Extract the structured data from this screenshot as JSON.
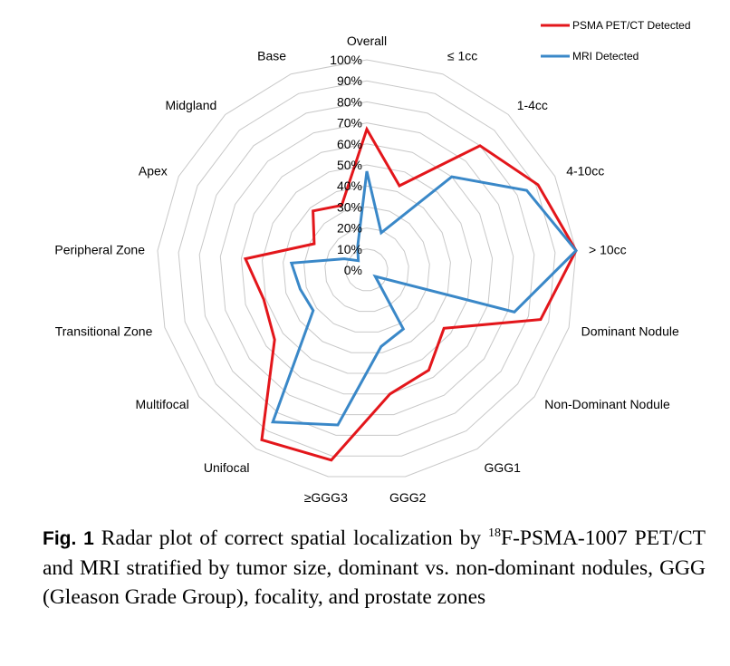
{
  "chart_data": {
    "type": "radar",
    "categories": [
      "Overall",
      "≤ 1cc",
      "1-4cc",
      "4-10cc",
      "> 10cc",
      "Dominant Nodule",
      "Non-Dominant Nodule",
      "GGG1",
      "GGG2",
      "≥GGG3",
      "Unifocal",
      "Multifocal",
      "Transitional Zone",
      "Peripheral Zone",
      "Apex",
      "Midgland",
      "Base"
    ],
    "rlim": [
      0,
      100
    ],
    "ticks": [
      "0%",
      "10%",
      "20%",
      "30%",
      "40%",
      "50%",
      "60%",
      "70%",
      "80%",
      "90%",
      "100%"
    ],
    "grid": true,
    "legend_position": "top-right",
    "series": [
      {
        "name": "PSMA PET/CT Detected",
        "color": "#e3161b",
        "values": [
          67,
          43,
          80,
          91,
          100,
          86,
          46,
          56,
          60,
          92,
          95,
          55,
          51,
          58,
          28,
          38,
          33
        ]
      },
      {
        "name": "MRI Detected",
        "color": "#3a88c8",
        "values": [
          47,
          19,
          60,
          85,
          100,
          73,
          5,
          33,
          37,
          75,
          85,
          32,
          33,
          36,
          12,
          6,
          12
        ]
      }
    ],
    "legend": [
      "PSMA PET/CT Detected",
      "MRI Detected"
    ]
  },
  "caption": {
    "label": "Fig. 1",
    "text_before_sup": "  Radar plot of correct spatial localization by ",
    "sup": "18",
    "text_after_sup": "F-PSMA-1007 PET/CT and MRI stratified by tumor size, dominant vs. non-dominant nodules, GGG (Gleason Grade Group), focality, and prostate zones"
  }
}
